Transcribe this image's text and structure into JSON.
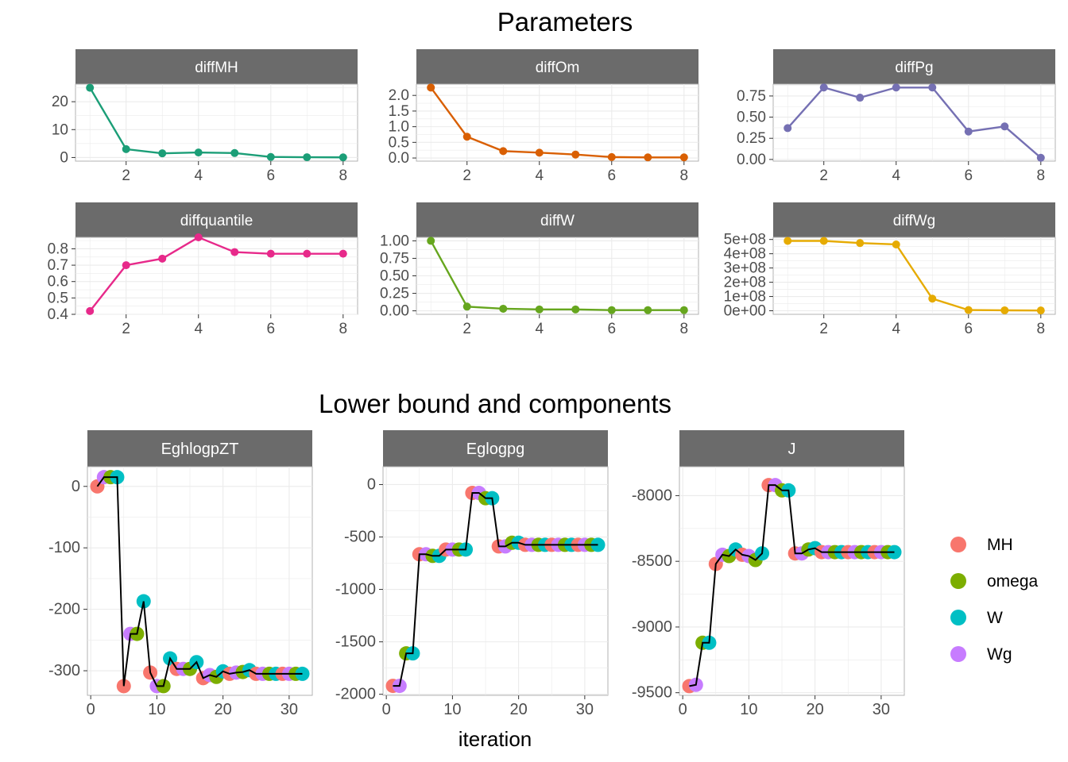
{
  "titles": {
    "parameters": "Parameters",
    "lower_bound": "Lower bound and components"
  },
  "xlabel": "iteration",
  "legend": {
    "position": "right",
    "entries": [
      {
        "label": "MH",
        "color": "#F8766D"
      },
      {
        "label": "omega",
        "color": "#7CAE00"
      },
      {
        "label": "W",
        "color": "#00BFC4"
      },
      {
        "label": "Wg",
        "color": "#C77CFF"
      }
    ]
  },
  "chart_data": [
    {
      "type": "line",
      "facet": "diffMH",
      "color": "#1B9E77",
      "x": [
        1,
        2,
        3,
        4,
        5,
        6,
        7,
        8
      ],
      "y": [
        25,
        3,
        1.5,
        1.8,
        1.6,
        0.2,
        0.1,
        0.05
      ],
      "xticks": [
        2,
        4,
        6,
        8
      ],
      "yticks": [
        0,
        10,
        20
      ],
      "ytick_labels": [
        "0",
        "10",
        "20"
      ],
      "xlim": [
        0.6,
        8.4
      ],
      "ylim": [
        -1.3,
        26.3
      ]
    },
    {
      "type": "line",
      "facet": "diffOm",
      "color": "#D95F02",
      "x": [
        1,
        2,
        3,
        4,
        5,
        6,
        7,
        8
      ],
      "y": [
        2.25,
        0.68,
        0.22,
        0.17,
        0.11,
        0.03,
        0.02,
        0.02
      ],
      "xticks": [
        2,
        4,
        6,
        8
      ],
      "yticks": [
        0,
        0.5,
        1,
        1.5,
        2
      ],
      "ytick_labels": [
        "0.0",
        "0.5",
        "1.0",
        "1.5",
        "2.0"
      ],
      "xlim": [
        0.6,
        8.4
      ],
      "ylim": [
        -0.1,
        2.36
      ]
    },
    {
      "type": "line",
      "facet": "diffPg",
      "color": "#7570B3",
      "x": [
        1,
        2,
        3,
        4,
        5,
        6,
        7,
        8
      ],
      "y": [
        0.37,
        0.85,
        0.73,
        0.85,
        0.85,
        0.33,
        0.39,
        0.02
      ],
      "xticks": [
        2,
        4,
        6,
        8
      ],
      "yticks": [
        0,
        0.25,
        0.5,
        0.75
      ],
      "ytick_labels": [
        "0.00",
        "0.25",
        "0.50",
        "0.75"
      ],
      "xlim": [
        0.6,
        8.4
      ],
      "ylim": [
        -0.02,
        0.89
      ]
    },
    {
      "type": "line",
      "facet": "diffquantile",
      "color": "#E7298A",
      "x": [
        1,
        2,
        3,
        4,
        5,
        6,
        7,
        8
      ],
      "y": [
        0.42,
        0.7,
        0.74,
        0.87,
        0.78,
        0.77,
        0.77,
        0.77
      ],
      "xticks": [
        2,
        4,
        6,
        8
      ],
      "yticks": [
        0.4,
        0.5,
        0.6,
        0.7,
        0.8
      ],
      "ytick_labels": [
        "0.4",
        "0.5",
        "0.6",
        "0.7",
        "0.8"
      ],
      "xlim": [
        0.6,
        8.4
      ],
      "ylim": [
        0.4,
        0.87
      ]
    },
    {
      "type": "line",
      "facet": "diffW",
      "color": "#66A61E",
      "x": [
        1,
        2,
        3,
        4,
        5,
        6,
        7,
        8
      ],
      "y": [
        1.0,
        0.06,
        0.03,
        0.02,
        0.02,
        0.01,
        0.01,
        0.01
      ],
      "xticks": [
        2,
        4,
        6,
        8
      ],
      "yticks": [
        0,
        0.25,
        0.5,
        0.75,
        1
      ],
      "ytick_labels": [
        "0.00",
        "0.25",
        "0.50",
        "0.75",
        "1.00"
      ],
      "xlim": [
        0.6,
        8.4
      ],
      "ylim": [
        -0.05,
        1.05
      ]
    },
    {
      "type": "line",
      "facet": "diffWg",
      "color": "#E6AB02",
      "x": [
        1,
        2,
        3,
        4,
        5,
        6,
        7,
        8
      ],
      "y": [
        490000000,
        490000000,
        475000000,
        465000000,
        85000000,
        5000000,
        3000000,
        2000000
      ],
      "xticks": [
        2,
        4,
        6,
        8
      ],
      "yticks": [
        0,
        100000000,
        200000000,
        300000000,
        400000000,
        500000000
      ],
      "ytick_labels": [
        "0e+00",
        "1e+08",
        "2e+08",
        "3e+08",
        "4e+08",
        "5e+08"
      ],
      "xlim": [
        0.6,
        8.4
      ],
      "ylim": [
        -25000000,
        515000000
      ]
    },
    {
      "type": "scatter",
      "facet": "EghlogpZT",
      "x": [
        1,
        2,
        3,
        4,
        5,
        6,
        7,
        8,
        9,
        10,
        11,
        12,
        13,
        14,
        15,
        16,
        17,
        18,
        19,
        20,
        21,
        22,
        23,
        24,
        25,
        26,
        27,
        28,
        29,
        30,
        31,
        32
      ],
      "y": [
        0,
        15,
        15,
        15,
        -325,
        -240,
        -240,
        -187,
        -303,
        -325,
        -325,
        -280,
        -297,
        -297,
        -297,
        -286,
        -312,
        -307,
        -310,
        -301,
        -305,
        -303,
        -302,
        -299,
        -305,
        -305,
        -305,
        -305,
        -305,
        -305,
        -305,
        -305
      ],
      "series_pattern": [
        "MH",
        "Wg",
        "omega",
        "W"
      ],
      "xticks": [
        0,
        10,
        20,
        30
      ],
      "yticks": [
        -300,
        -200,
        -100,
        0
      ],
      "ytick_labels": [
        "-300",
        "-200",
        "-100",
        "0"
      ],
      "xlim": [
        -0.5,
        33.5
      ],
      "ylim": [
        -340,
        32
      ]
    },
    {
      "type": "scatter",
      "facet": "Eglogpg",
      "x": [
        1,
        2,
        3,
        4,
        5,
        6,
        7,
        8,
        9,
        10,
        11,
        12,
        13,
        14,
        15,
        16,
        17,
        18,
        19,
        20,
        21,
        22,
        23,
        24,
        25,
        26,
        27,
        28,
        29,
        30,
        31,
        32
      ],
      "y": [
        -1920,
        -1920,
        -1610,
        -1610,
        -665,
        -665,
        -680,
        -680,
        -620,
        -620,
        -620,
        -620,
        -80,
        -80,
        -130,
        -130,
        -590,
        -590,
        -555,
        -555,
        -575,
        -575,
        -575,
        -575,
        -575,
        -575,
        -575,
        -575,
        -575,
        -575,
        -575,
        -575
      ],
      "series_pattern": [
        "MH",
        "Wg",
        "omega",
        "W"
      ],
      "xticks": [
        0,
        10,
        20,
        30
      ],
      "yticks": [
        -2000,
        -1500,
        -1000,
        -500,
        0
      ],
      "ytick_labels": [
        "-2000",
        "-1500",
        "-1000",
        "-500",
        "0"
      ],
      "xlim": [
        -0.5,
        33.5
      ],
      "ylim": [
        -2010,
        170
      ]
    },
    {
      "type": "scatter",
      "facet": "J",
      "x": [
        1,
        2,
        3,
        4,
        5,
        6,
        7,
        8,
        9,
        10,
        11,
        12,
        13,
        14,
        15,
        16,
        17,
        18,
        19,
        20,
        21,
        22,
        23,
        24,
        25,
        26,
        27,
        28,
        29,
        30,
        31,
        32
      ],
      "y": [
        -9450,
        -9440,
        -9120,
        -9120,
        -8520,
        -8450,
        -8460,
        -8410,
        -8450,
        -8460,
        -8490,
        -8440,
        -7920,
        -7920,
        -7960,
        -7960,
        -8440,
        -8440,
        -8410,
        -8400,
        -8430,
        -8430,
        -8430,
        -8430,
        -8430,
        -8430,
        -8430,
        -8430,
        -8430,
        -8430,
        -8430,
        -8430
      ],
      "series_pattern": [
        "MH",
        "Wg",
        "omega",
        "W"
      ],
      "xticks": [
        0,
        10,
        20,
        30
      ],
      "yticks": [
        -9500,
        -9000,
        -8500,
        -8000
      ],
      "ytick_labels": [
        "-9500",
        "-9000",
        "-8500",
        "-8000"
      ],
      "xlim": [
        -0.5,
        33.5
      ],
      "ylim": [
        -9520,
        -7780
      ]
    }
  ]
}
